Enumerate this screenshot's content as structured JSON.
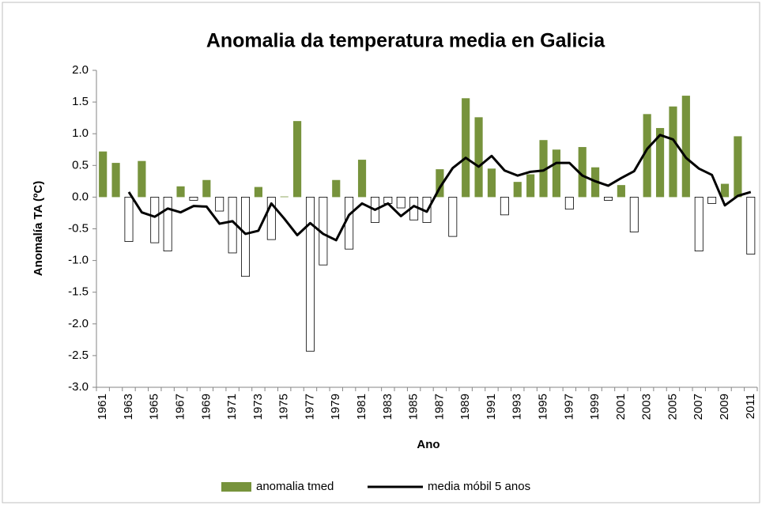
{
  "chart_data": {
    "type": "bar",
    "title": "Anomalia da temperatura media en Galicia",
    "xlabel": "Ano",
    "ylabel": "Anomalía TA (ºC)",
    "categories": [
      "1961",
      null,
      "1963",
      null,
      "1965",
      null,
      "1967",
      null,
      "1969",
      null,
      "1971",
      null,
      "1973",
      null,
      "1975",
      null,
      "1977",
      null,
      "1979",
      null,
      "1981",
      null,
      "1983",
      null,
      "1985",
      null,
      "1987",
      null,
      "1989",
      null,
      "1991",
      null,
      "1993",
      null,
      "1995",
      null,
      "1997",
      null,
      "1999",
      null,
      "2001",
      null,
      "2003",
      null,
      "2005",
      null,
      "2007",
      null,
      "2009",
      null,
      "2011"
    ],
    "series": [
      {
        "name": "anomalia tmed",
        "type": "bar",
        "color": "#77933c",
        "negative_color": "#ffffff",
        "values": [
          0.72,
          0.54,
          -0.7,
          0.57,
          -0.72,
          -0.85,
          0.17,
          -0.05,
          0.27,
          -0.22,
          -0.88,
          -1.25,
          0.16,
          -0.67,
          0.01,
          1.2,
          -2.43,
          -1.07,
          0.27,
          -0.82,
          0.59,
          -0.4,
          -0.1,
          -0.17,
          -0.36,
          -0.4,
          0.44,
          -0.62,
          1.56,
          1.26,
          0.45,
          -0.28,
          0.24,
          0.36,
          0.9,
          0.75,
          -0.19,
          0.79,
          0.47,
          -0.05,
          0.19,
          -0.55,
          1.31,
          1.09,
          1.43,
          1.6,
          -0.85,
          -0.1,
          0.21,
          0.96,
          -0.9
        ]
      },
      {
        "name": "media móbil 5 anos",
        "type": "line",
        "color": "#000000",
        "values": [
          null,
          null,
          0.08,
          -0.24,
          -0.31,
          -0.18,
          -0.24,
          -0.14,
          -0.15,
          -0.42,
          -0.38,
          -0.58,
          -0.53,
          -0.1,
          -0.34,
          -0.6,
          -0.41,
          -0.58,
          -0.68,
          -0.28,
          -0.1,
          -0.2,
          -0.1,
          -0.3,
          -0.14,
          -0.23,
          0.15,
          0.46,
          0.62,
          0.48,
          0.65,
          0.42,
          0.34,
          0.4,
          0.42,
          0.54,
          0.54,
          0.34,
          0.25,
          0.18,
          0.3,
          0.41,
          0.76,
          0.98,
          0.91,
          0.62,
          0.45,
          0.35,
          -0.13,
          0.02,
          0.08
        ]
      }
    ],
    "ylim": [
      -3,
      2
    ],
    "yticks": [
      {
        "value": -3,
        "label": "-3.0"
      },
      -2.5,
      {
        "value": -2,
        "label": "-2.0"
      },
      -1.5,
      {
        "value": -1,
        "label": "-1.0"
      },
      -0.5,
      {
        "value": 0,
        "label": "0.0"
      },
      0.5,
      {
        "value": 1,
        "label": "1.0"
      },
      1.5,
      {
        "value": 2,
        "label": "2.0"
      }
    ],
    "grid": false,
    "legend": "bottom"
  }
}
